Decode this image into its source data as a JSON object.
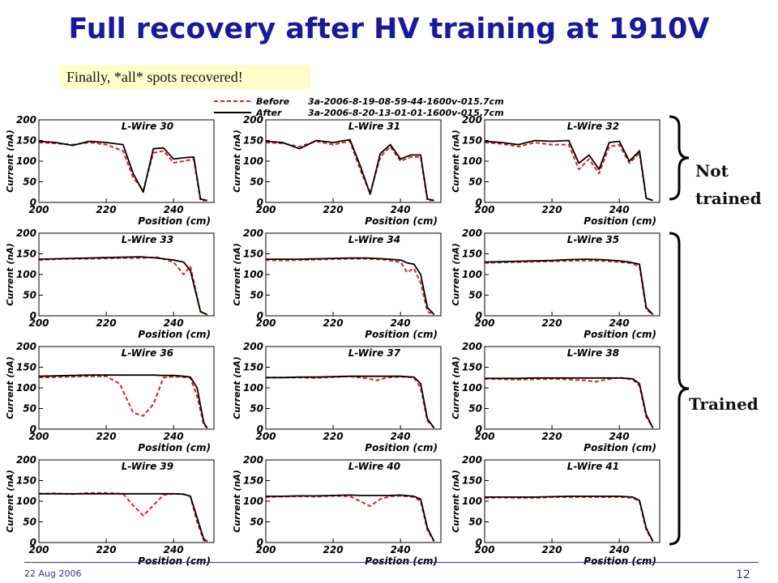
{
  "title": "Full recovery after HV training at 1910V",
  "note": "Finally, *all* spots recovered!",
  "side_labels": {
    "not_trained_1": "Not",
    "not_trained_2": "trained",
    "trained": "Trained"
  },
  "footer": {
    "date": "22 Aug 2006",
    "page": "12"
  },
  "colors": {
    "title": "#1a1a99",
    "before": "#dd2222",
    "after": "#000000",
    "note_bg": "#ffffcc",
    "brace": "#000000"
  },
  "chart_data": {
    "type": "line",
    "legend": {
      "position": "top",
      "entries": [
        {
          "name": "Before",
          "file": "3a-2006-8-19-08-59-44-1600v-015.7cm",
          "style": "dashed",
          "color": "#dd2222"
        },
        {
          "name": "After",
          "file": "3a-2006-8-20-13-01-01-1600v-015.7cm",
          "style": "solid",
          "color": "#000000"
        }
      ]
    },
    "xlabel": "Position (cm)",
    "ylabel": "Current (nA)",
    "xlim": [
      200,
      252
    ],
    "ylim": [
      0,
      200
    ],
    "xticks": [
      200,
      220,
      240
    ],
    "yticks": [
      0,
      50,
      100,
      150,
      200
    ],
    "panels": [
      {
        "label": "L-Wire 30",
        "x": [
          200,
          205,
          210,
          215,
          220,
          225,
          228,
          231,
          234,
          237,
          240,
          243,
          246,
          248,
          250
        ],
        "before": [
          145,
          143,
          140,
          145,
          140,
          125,
          60,
          30,
          120,
          125,
          96,
          100,
          105,
          5,
          5
        ],
        "after": [
          148,
          145,
          138,
          148,
          145,
          140,
          70,
          25,
          130,
          132,
          105,
          108,
          110,
          8,
          5
        ]
      },
      {
        "label": "L-Wire 31",
        "x": [
          200,
          205,
          210,
          215,
          220,
          225,
          228,
          231,
          234,
          237,
          240,
          243,
          246,
          248,
          250
        ],
        "before": [
          145,
          143,
          135,
          148,
          140,
          148,
          80,
          22,
          110,
          135,
          100,
          110,
          110,
          5,
          5
        ],
        "after": [
          148,
          145,
          130,
          150,
          145,
          152,
          90,
          20,
          118,
          140,
          105,
          115,
          115,
          8,
          5
        ]
      },
      {
        "label": "L-Wire 32",
        "x": [
          200,
          205,
          210,
          215,
          220,
          225,
          228,
          231,
          234,
          237,
          240,
          243,
          246,
          248,
          250
        ],
        "before": [
          145,
          142,
          135,
          145,
          140,
          140,
          80,
          105,
          70,
          135,
          140,
          95,
          120,
          10,
          5
        ],
        "after": [
          148,
          145,
          140,
          150,
          148,
          150,
          95,
          115,
          80,
          145,
          148,
          100,
          125,
          10,
          5
        ]
      },
      {
        "label": "L-Wire 33",
        "x": [
          200,
          205,
          210,
          215,
          220,
          225,
          230,
          235,
          240,
          243,
          245,
          248,
          250
        ],
        "before": [
          135,
          137,
          138,
          138,
          139,
          140,
          140,
          142,
          130,
          100,
          120,
          10,
          3
        ],
        "after": [
          137,
          138,
          139,
          140,
          141,
          142,
          143,
          140,
          135,
          130,
          110,
          10,
          3
        ]
      },
      {
        "label": "L-Wire 34",
        "x": [
          200,
          205,
          210,
          215,
          220,
          225,
          230,
          235,
          240,
          242,
          244,
          246,
          248,
          250
        ],
        "before": [
          135,
          134,
          135,
          136,
          137,
          138,
          138,
          136,
          130,
          105,
          115,
          80,
          10,
          3
        ],
        "after": [
          137,
          137,
          137,
          138,
          139,
          140,
          140,
          138,
          135,
          128,
          125,
          100,
          20,
          3
        ]
      },
      {
        "label": "L-Wire 35",
        "x": [
          200,
          205,
          210,
          215,
          220,
          225,
          230,
          235,
          240,
          243,
          246,
          248,
          250
        ],
        "before": [
          128,
          129,
          130,
          131,
          132,
          133,
          134,
          133,
          130,
          128,
          120,
          15,
          3
        ],
        "after": [
          130,
          131,
          132,
          133,
          134,
          136,
          137,
          136,
          133,
          130,
          125,
          20,
          3
        ]
      },
      {
        "label": "L-Wire 36",
        "x": [
          200,
          205,
          210,
          215,
          220,
          224,
          228,
          231,
          234,
          237,
          240,
          243,
          245,
          247,
          249,
          250
        ],
        "before": [
          125,
          126,
          127,
          128,
          128,
          110,
          40,
          32,
          60,
          125,
          127,
          126,
          124,
          80,
          10,
          3
        ],
        "after": [
          128,
          129,
          130,
          131,
          131,
          131,
          131,
          131,
          131,
          130,
          130,
          128,
          126,
          100,
          15,
          3
        ]
      },
      {
        "label": "L-Wire 37",
        "x": [
          200,
          205,
          210,
          215,
          220,
          225,
          230,
          233,
          236,
          240,
          244,
          246,
          248,
          250
        ],
        "before": [
          125,
          125,
          125,
          124,
          126,
          128,
          123,
          118,
          125,
          127,
          125,
          100,
          20,
          3
        ],
        "after": [
          125,
          125,
          126,
          126,
          127,
          128,
          128,
          128,
          128,
          128,
          126,
          110,
          25,
          3
        ]
      },
      {
        "label": "L-Wire 38",
        "x": [
          200,
          205,
          210,
          215,
          220,
          225,
          230,
          233,
          236,
          240,
          244,
          246,
          248,
          250
        ],
        "before": [
          122,
          121,
          120,
          121,
          122,
          120,
          118,
          115,
          120,
          125,
          120,
          105,
          30,
          3
        ],
        "after": [
          123,
          123,
          123,
          124,
          124,
          124,
          124,
          124,
          124,
          124,
          122,
          110,
          35,
          3
        ]
      },
      {
        "label": "L-Wire 39",
        "x": [
          200,
          205,
          210,
          215,
          220,
          225,
          228,
          231,
          234,
          237,
          240,
          243,
          245,
          247,
          249,
          250
        ],
        "before": [
          118,
          119,
          117,
          120,
          120,
          118,
          90,
          65,
          90,
          115,
          118,
          117,
          112,
          50,
          5,
          3
        ],
        "after": [
          118,
          118,
          118,
          118,
          118,
          118,
          118,
          118,
          118,
          118,
          118,
          117,
          112,
          60,
          8,
          3
        ]
      },
      {
        "label": "L-Wire 40",
        "x": [
          200,
          205,
          210,
          215,
          220,
          225,
          228,
          231,
          234,
          237,
          240,
          244,
          246,
          248,
          250
        ],
        "before": [
          110,
          111,
          112,
          111,
          113,
          112,
          100,
          88,
          105,
          112,
          113,
          110,
          100,
          30,
          3
        ],
        "after": [
          112,
          112,
          113,
          113,
          114,
          115,
          114,
          114,
          114,
          114,
          115,
          112,
          105,
          35,
          3
        ]
      },
      {
        "label": "L-Wire 41",
        "x": [
          200,
          205,
          210,
          215,
          220,
          225,
          230,
          235,
          240,
          244,
          246,
          248,
          250
        ],
        "before": [
          108,
          109,
          108,
          108,
          110,
          110,
          110,
          110,
          110,
          108,
          100,
          30,
          3
        ],
        "after": [
          110,
          110,
          110,
          110,
          111,
          112,
          112,
          112,
          112,
          110,
          102,
          35,
          3
        ]
      }
    ]
  }
}
